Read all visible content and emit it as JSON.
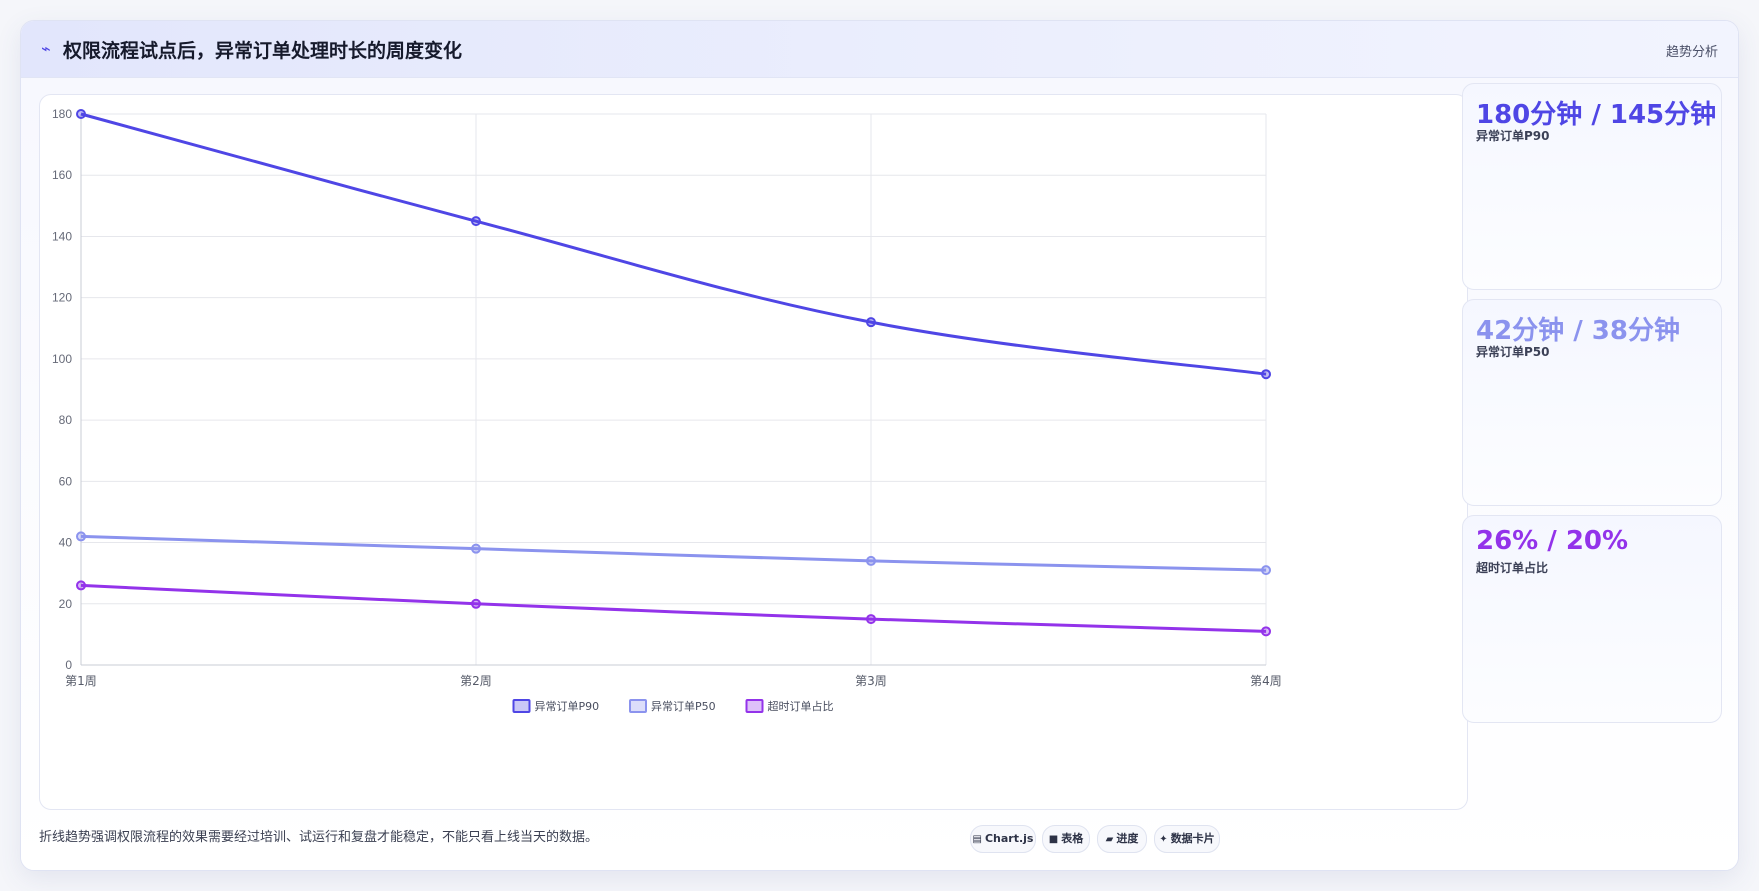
{
  "header": {
    "icon": "trend-line-icon",
    "title": "权限流程试点后，异常订单处理时长的周度变化",
    "tag": "趋势分析"
  },
  "stats": [
    {
      "value": "180分钟 / 145分钟",
      "label": "异常订单P90",
      "color": "#4f46e5"
    },
    {
      "value": "42分钟 / 38分钟",
      "label": "异常订单P50",
      "color": "#8b93ee"
    },
    {
      "value": "26% / 20%",
      "label": "超时订单占比",
      "color": "#9333ea"
    }
  ],
  "footnote": "折线趋势强调权限流程的效果需要经过培训、试运行和复盘才能稳定，不能只看上线当天的数据。",
  "chips": [
    {
      "icon": "chart-icon",
      "glyph": "▤",
      "label": "Chart.js"
    },
    {
      "icon": "table-icon",
      "glyph": "■",
      "label": "表格"
    },
    {
      "icon": "progress-icon",
      "glyph": "▰",
      "label": "进度"
    },
    {
      "icon": "card-icon",
      "glyph": "✦",
      "label": "数据卡片"
    }
  ],
  "chart_data": {
    "type": "line",
    "categories": [
      "第1周",
      "第2周",
      "第3周",
      "第4周"
    ],
    "ylim": [
      0,
      180
    ],
    "yticks": [
      0,
      20,
      40,
      60,
      80,
      100,
      120,
      140,
      160,
      180
    ],
    "grid": true,
    "legend": "bottom",
    "series": [
      {
        "name": "异常订单P90",
        "values": [
          180,
          145,
          112,
          95
        ],
        "color": "#4f46e5"
      },
      {
        "name": "异常订单P50",
        "values": [
          42,
          38,
          34,
          31
        ],
        "color": "#8b93ee"
      },
      {
        "name": "超时订单占比",
        "values": [
          26,
          20,
          15,
          11
        ],
        "color": "#9333ea"
      }
    ]
  }
}
